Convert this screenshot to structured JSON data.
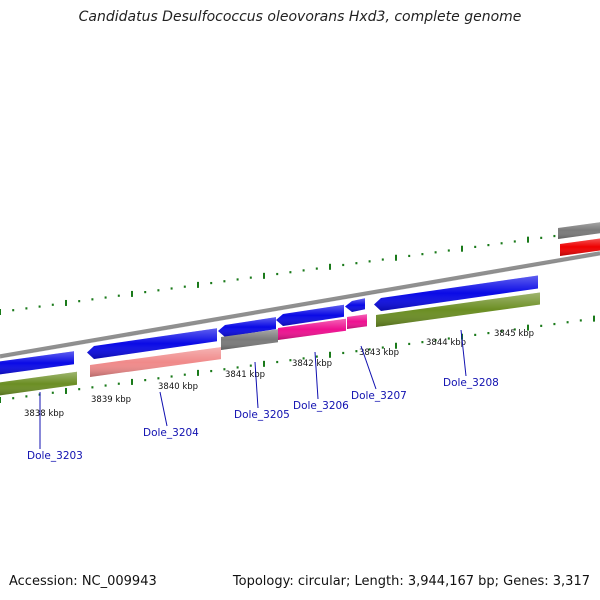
{
  "title": "Candidatus Desulfococcus oleovorans Hxd3, complete genome",
  "footer": {
    "accession": "Accession: NC_009943",
    "stats": "Topology: circular; Length: 3,944,167 bp; Genes: 3,317"
  },
  "colors": {
    "forward_cds": "#0a0ae6",
    "reverse_cds": "#6b8e23",
    "backbone": "#909090",
    "pseudo": "#7a7a7a",
    "salmon": "#f08a8a",
    "magenta": "#ee1090",
    "red": "#ee0000",
    "label": "#1010b0",
    "tick": "#1a7a1a"
  },
  "scale_labels": [
    "3838 kbp",
    "3839 kbp",
    "3840 kbp",
    "3841 kbp",
    "3842 kbp",
    "3843 kbp",
    "3844 kbp",
    "3845 kbp"
  ],
  "gene_labels": [
    "Dole_3203",
    "Dole_3204",
    "Dole_3205",
    "Dole_3206",
    "Dole_3207",
    "Dole_3208"
  ]
}
